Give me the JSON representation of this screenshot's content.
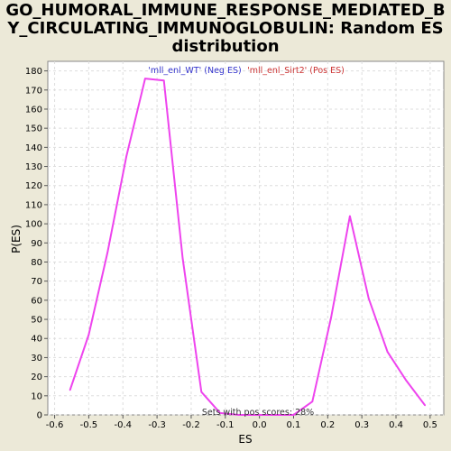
{
  "chart_data": {
    "type": "line",
    "title_lines": [
      "GO_HUMORAL_IMMUNE_RESPONSE_MEDIATED_B",
      "Y_CIRCULATING_IMMUNOGLOBULIN: Random ES",
      "distribution"
    ],
    "xlabel": "ES",
    "ylabel": "P(ES)",
    "xlim": [
      -0.62,
      0.54
    ],
    "ylim": [
      0,
      185
    ],
    "x_ticks": [
      -0.6,
      -0.5,
      -0.4,
      -0.3,
      -0.2,
      -0.1,
      0.0,
      0.1,
      0.2,
      0.3,
      0.4,
      0.5
    ],
    "x_tick_labels": [
      "-0.6",
      "-0.5",
      "-0.4",
      "-0.3",
      "-0.2",
      "-0.1",
      "0.0",
      "0.1",
      "0.2",
      "0.3",
      "0.4",
      "0.5"
    ],
    "y_ticks": [
      0,
      10,
      20,
      30,
      40,
      50,
      60,
      70,
      80,
      90,
      100,
      110,
      120,
      130,
      140,
      150,
      160,
      170,
      180
    ],
    "y_tick_labels": [
      "0",
      "10",
      "20",
      "30",
      "40",
      "50",
      "60",
      "70",
      "80",
      "90",
      "100",
      "110",
      "120",
      "130",
      "140",
      "150",
      "160",
      "170",
      "180"
    ],
    "grid": true,
    "legend": [
      {
        "text": "'mll_enl_WT' (Neg ES)",
        "color": "#3333cc"
      },
      {
        "text": "'mll_enl_Sirt2' (Pos ES)",
        "color": "#cc3333"
      }
    ],
    "annotation": "Sets with pos scores: 28%",
    "series": [
      {
        "color": "#ee44ee",
        "x": [
          -0.555,
          -0.5,
          -0.445,
          -0.39,
          -0.335,
          -0.28,
          -0.225,
          -0.17,
          -0.115,
          -0.06,
          0.0,
          0.05,
          0.1,
          0.155,
          0.21,
          0.265,
          0.32,
          0.375,
          0.43,
          0.485
        ],
        "y": [
          13,
          42,
          85,
          135,
          176,
          175,
          82,
          12,
          1,
          0,
          0,
          0,
          0,
          7,
          51,
          104,
          61,
          33,
          18,
          5
        ]
      }
    ]
  }
}
